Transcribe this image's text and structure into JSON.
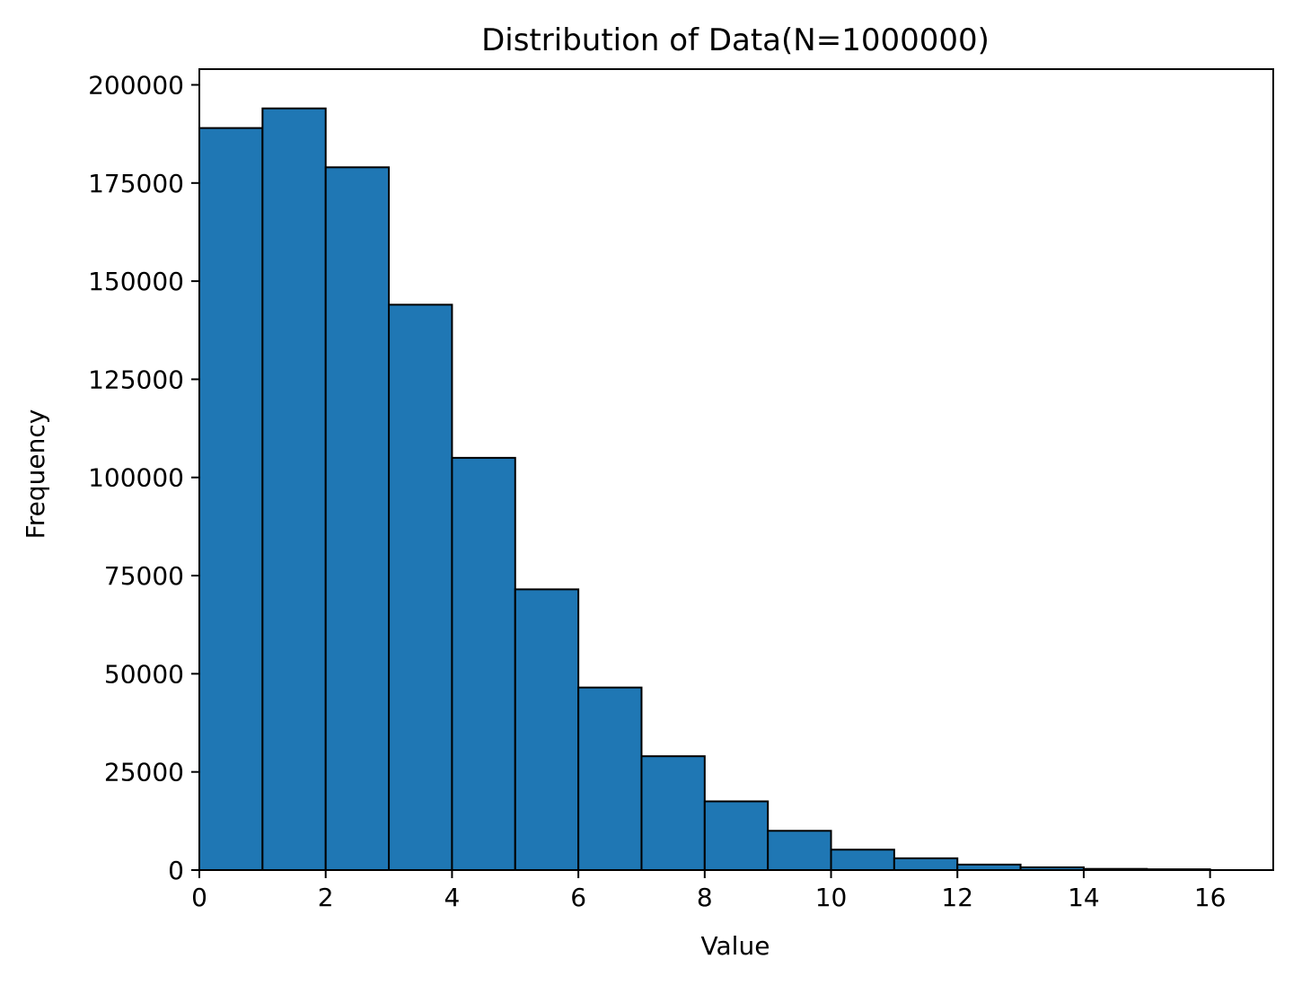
{
  "chart_data": {
    "type": "bar",
    "title": "Distribution of Data(N=1000000)",
    "xlabel": "Value",
    "ylabel": "Frequency",
    "xlim": [
      0,
      17
    ],
    "ylim": [
      0,
      204000
    ],
    "bin_edges": [
      0,
      1,
      2,
      3,
      4,
      5,
      6,
      7,
      8,
      9,
      10,
      11,
      12,
      13,
      14,
      15,
      16
    ],
    "values": [
      189000,
      194000,
      179000,
      144000,
      105000,
      71500,
      46500,
      29000,
      17500,
      10000,
      5200,
      3000,
      1400,
      700,
      300,
      200
    ],
    "x_ticks": [
      0,
      2,
      4,
      6,
      8,
      10,
      12,
      14,
      16
    ],
    "y_ticks": [
      0,
      25000,
      50000,
      75000,
      100000,
      125000,
      150000,
      175000,
      200000
    ],
    "bar_color": "#1f77b4",
    "edge_color": "#000000",
    "grid": false,
    "legend": "none"
  }
}
